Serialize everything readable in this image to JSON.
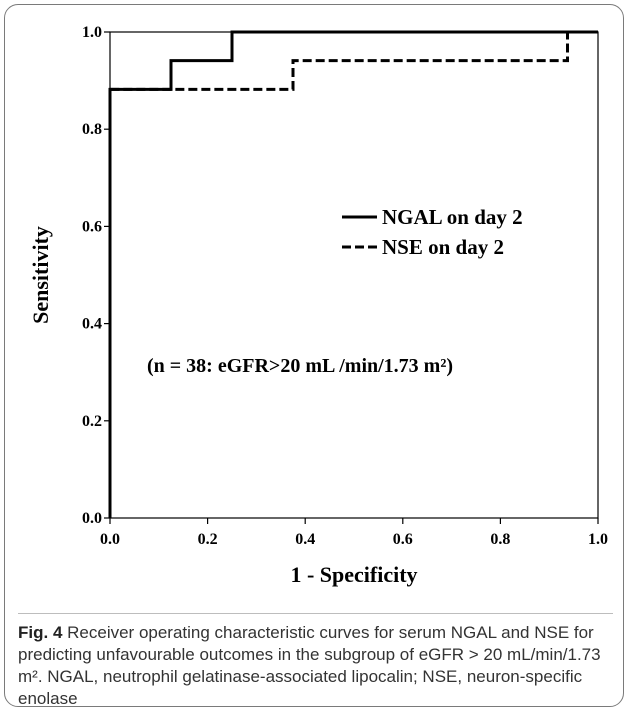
{
  "chart_data": {
    "type": "line",
    "xlabel": "1 - Specificity",
    "ylabel": "Sensitivity",
    "xlim": [
      0.0,
      1.0
    ],
    "ylim": [
      0.0,
      1.0
    ],
    "x_ticks": [
      "0.0",
      "0.2",
      "0.4",
      "0.6",
      "0.8",
      "1.0"
    ],
    "y_ticks": [
      "0.0",
      "0.2",
      "0.4",
      "0.6",
      "0.8",
      "1.0"
    ],
    "grid": false,
    "legend_position": "right",
    "series": [
      {
        "name": "NGAL on day 2",
        "style": "solid",
        "color": "#000000",
        "points": [
          [
            0,
            0
          ],
          [
            0,
            0.882
          ],
          [
            0.125,
            0.882
          ],
          [
            0.125,
            0.941
          ],
          [
            0.25,
            0.941
          ],
          [
            0.25,
            1.0
          ],
          [
            1.0,
            1.0
          ]
        ]
      },
      {
        "name": "NSE on day 2",
        "style": "dashed",
        "color": "#000000",
        "points": [
          [
            0,
            0
          ],
          [
            0,
            0.882
          ],
          [
            0.375,
            0.882
          ],
          [
            0.375,
            0.941
          ],
          [
            0.9375,
            0.941
          ],
          [
            0.9375,
            1.0
          ],
          [
            1.0,
            1.0
          ]
        ]
      }
    ],
    "annotation": "(n = 38: eGFR>20 mL /min/1.73 m²)"
  },
  "caption": {
    "label": "Fig. 4",
    "text": "Receiver operating characteristic curves for serum NGAL and NSE for predicting unfavourable outcomes in the subgroup of eGFR > 20 mL/min/1.73 m². NGAL, neutrophil gelatinase-associated lipocalin; NSE, neuron-specific enolase"
  }
}
